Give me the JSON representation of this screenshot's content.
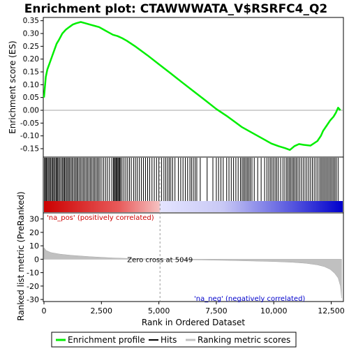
{
  "chart_data": {
    "type": "line",
    "title": "Enrichment plot: CTAWWWATA_V$RSRFC4_Q2",
    "top_panel": {
      "ylabel": "Enrichment score (ES)",
      "ylim": [
        -0.18,
        0.36
      ],
      "yticks": [
        -0.15,
        -0.1,
        -0.05,
        0.0,
        0.05,
        0.1,
        0.15,
        0.2,
        0.25,
        0.3,
        0.35
      ],
      "ytick_labels": [
        "-0.15",
        "-0.10",
        "-0.05",
        "0.00",
        "0.05",
        "0.10",
        "0.15",
        "0.20",
        "0.25",
        "0.30",
        "0.35"
      ],
      "series_color": "#00ee00",
      "profile": {
        "x": [
          0,
          40,
          80,
          150,
          250,
          350,
          450,
          550,
          650,
          800,
          950,
          1100,
          1250,
          1400,
          1600,
          1800,
          2000,
          2200,
          2400,
          2600,
          2800,
          3000,
          3200,
          3400,
          3600,
          3800,
          4000,
          4500,
          5000,
          5500,
          6000,
          6500,
          7000,
          7500,
          8000,
          8300,
          8600,
          9000,
          9300,
          9600,
          9900,
          10200,
          10500,
          10700,
          10900,
          11100,
          11300,
          11600,
          11900,
          12050,
          12150,
          12300,
          12450,
          12600,
          12700,
          12800,
          12900
        ],
        "y": [
          0.05,
          0.09,
          0.13,
          0.16,
          0.185,
          0.21,
          0.235,
          0.26,
          0.275,
          0.3,
          0.315,
          0.325,
          0.335,
          0.34,
          0.345,
          0.34,
          0.335,
          0.33,
          0.325,
          0.315,
          0.305,
          0.295,
          0.29,
          0.282,
          0.272,
          0.26,
          0.248,
          0.215,
          0.18,
          0.145,
          0.11,
          0.075,
          0.04,
          0.005,
          -0.025,
          -0.045,
          -0.065,
          -0.085,
          -0.1,
          -0.115,
          -0.13,
          -0.14,
          -0.148,
          -0.155,
          -0.14,
          -0.132,
          -0.135,
          -0.138,
          -0.12,
          -0.1,
          -0.08,
          -0.06,
          -0.04,
          -0.025,
          -0.01,
          0.01,
          0.0
        ]
      }
    },
    "hits_panel": {
      "hit_ranks": [
        25,
        60,
        100,
        140,
        190,
        240,
        280,
        330,
        380,
        420,
        470,
        520,
        560,
        600,
        650,
        700,
        760,
        810,
        860,
        900,
        950,
        1000,
        1050,
        1100,
        1150,
        1210,
        1260,
        1320,
        1380,
        1430,
        1480,
        1540,
        1600,
        1660,
        1720,
        1780,
        1840,
        1900,
        1960,
        2020,
        2080,
        2140,
        2200,
        2260,
        2320,
        2380,
        2440,
        2520,
        2600,
        2680,
        2760,
        2850,
        2950,
        3020,
        3060,
        3100,
        3140,
        3180,
        3220,
        3260,
        3300,
        3340,
        3400,
        3480,
        3560,
        3640,
        3720,
        3800,
        3900,
        3980,
        4060,
        4150,
        4240,
        4330,
        4420,
        4510,
        4600,
        4700,
        4800,
        4900,
        5000,
        5120,
        5220,
        5300,
        5380,
        5450,
        5520,
        5600,
        5700,
        5850,
        5950,
        6050,
        6150,
        6250,
        6350,
        6420,
        6500,
        6580,
        6650,
        6800,
        7100,
        7350,
        7500,
        7600,
        7700,
        7800,
        7950,
        8050,
        8150,
        8250,
        8350,
        8450,
        8550,
        8620,
        8680,
        8740,
        8800,
        8860,
        8920,
        8980,
        9050,
        9150,
        9300,
        9450,
        9600,
        9700,
        9780,
        9850,
        9920,
        9990,
        10060,
        10130,
        10200,
        10300,
        10400,
        10480,
        10560,
        10620,
        10680,
        10740,
        10800,
        10860,
        10920,
        10980,
        11050,
        11120,
        11200,
        11280,
        11360,
        11440,
        11520,
        11600,
        11680,
        11760,
        11840,
        11920,
        12000,
        12060,
        12120,
        12180,
        12240,
        12300,
        12360,
        12420,
        12480,
        12540,
        12600,
        12660,
        12720,
        12800
      ]
    },
    "bottom_panel": {
      "ylabel": "Ranked list metric (PreRanked)",
      "xlabel": "Rank in Ordered Dataset",
      "ylim": [
        -31,
        34
      ],
      "yticks": [
        -30,
        -20,
        -10,
        0,
        10,
        20,
        30
      ],
      "ytick_labels": [
        "-30",
        "-20",
        "-10",
        "0",
        "10",
        "20",
        "30"
      ],
      "xlim": [
        0,
        13000
      ],
      "xticks": [
        0,
        2500,
        5000,
        7500,
        10000,
        12500
      ],
      "xtick_labels": [
        "0",
        "2,500",
        "5,000",
        "7,500",
        "10,000",
        "12,500"
      ],
      "zero_cross_rank": 5049,
      "zero_cross_label": "Zero cross at 5049",
      "pos_label": "'na_pos' (positively correlated)",
      "neg_label": "'na_neg' (negatively correlated)",
      "pos_color": "#cc0000",
      "neg_color": "#0000cc",
      "metric": {
        "x": [
          0,
          100,
          300,
          700,
          1200,
          2000,
          3000,
          4000,
          5049,
          6000,
          7000,
          8000,
          9000,
          10000,
          10800,
          11400,
          11900,
          12200,
          12450,
          12650,
          12800,
          12900,
          12950
        ],
        "y": [
          8.5,
          6.5,
          5.0,
          3.8,
          2.9,
          1.9,
          1.0,
          0.4,
          0.0,
          -0.3,
          -0.6,
          -0.9,
          -1.3,
          -1.7,
          -2.3,
          -3.0,
          -4.2,
          -5.5,
          -7.5,
          -10.5,
          -14.0,
          -20.0,
          -29.0
        ]
      }
    },
    "legend": {
      "entries": [
        "Enrichment profile",
        "Hits",
        "Ranking metric scores"
      ],
      "colors": [
        "#00ee00",
        "#000000",
        "#c0c0c0"
      ]
    }
  }
}
